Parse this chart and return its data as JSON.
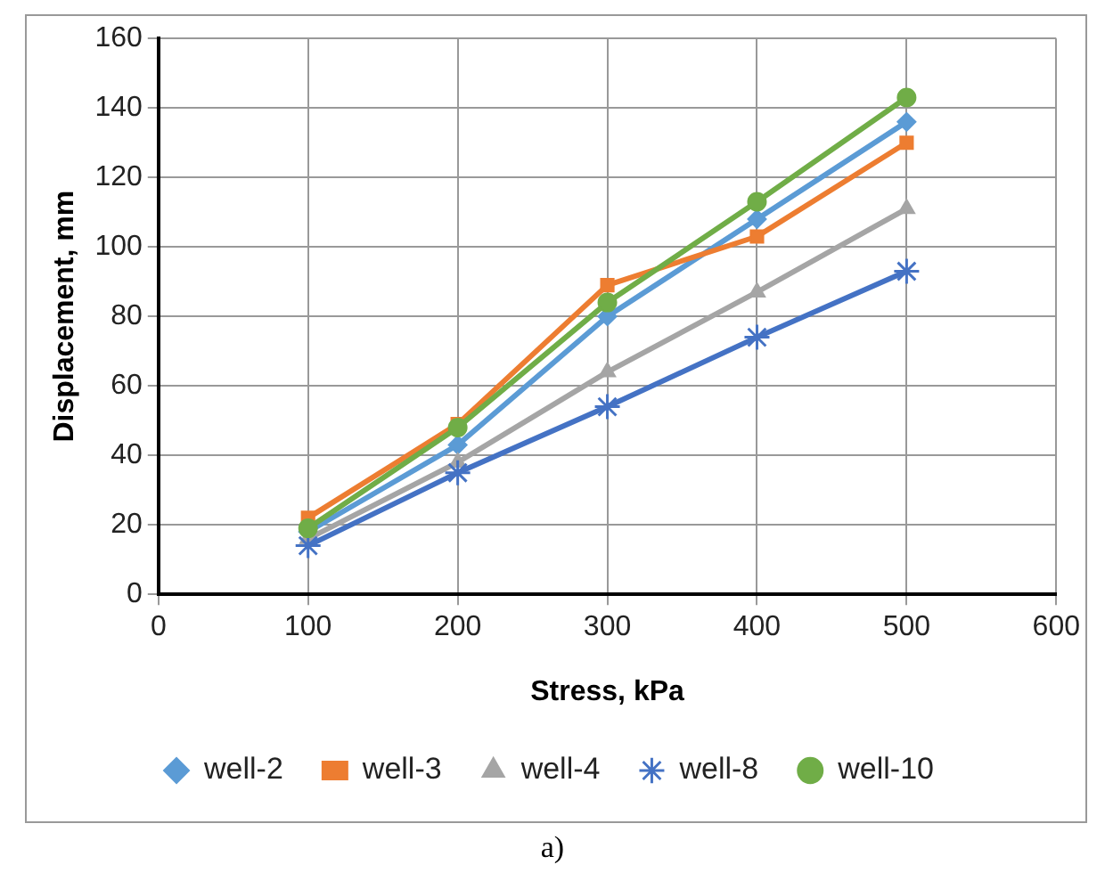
{
  "chart_data": {
    "type": "line",
    "xlabel": "Stress, kPa",
    "ylabel": "Displacement, mm",
    "x": [
      100,
      200,
      300,
      400,
      500
    ],
    "xlim": [
      0,
      600
    ],
    "xticks": [
      0,
      100,
      200,
      300,
      400,
      500,
      600
    ],
    "ylim": [
      0,
      160
    ],
    "yticks": [
      0,
      20,
      40,
      60,
      80,
      100,
      120,
      140,
      160
    ],
    "grid": true,
    "legend": "bottom",
    "line_style": "solid",
    "series": [
      {
        "name": "well-2",
        "color": "#5b9bd5",
        "marker": "diamond",
        "values": [
          18,
          43,
          80,
          108,
          136
        ]
      },
      {
        "name": "well-3",
        "color": "#ed7d31",
        "marker": "square",
        "values": [
          22,
          49,
          89,
          103,
          130
        ]
      },
      {
        "name": "well-4",
        "color": "#a5a5a5",
        "marker": "triangle",
        "values": [
          16,
          38,
          64,
          87,
          111
        ]
      },
      {
        "name": "well-8",
        "color": "#4472c4",
        "marker": "cross",
        "values": [
          14,
          35,
          54,
          74,
          93
        ]
      },
      {
        "name": "well-10",
        "color": "#70ad47",
        "marker": "circle",
        "values": [
          19,
          48,
          84,
          113,
          143
        ]
      }
    ],
    "annotations": [
      "a)"
    ]
  }
}
